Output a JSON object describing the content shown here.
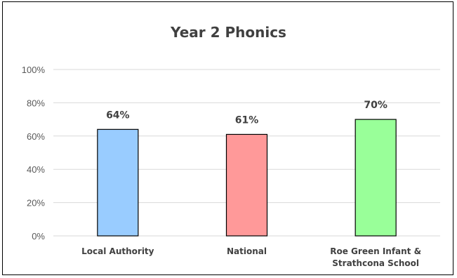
{
  "chart_data": {
    "type": "bar",
    "title": "Year 2 Phonics",
    "categories": [
      [
        "Local Authority"
      ],
      [
        "National"
      ],
      [
        "Roe Green Infant &",
        "Strathcona School"
      ]
    ],
    "values": [
      64,
      61,
      70
    ],
    "data_labels": [
      "64%",
      "61%",
      "70%"
    ],
    "colors": [
      "#99ccff",
      "#ff9999",
      "#99ff99"
    ],
    "ylim": [
      0,
      100
    ],
    "yticks": [
      {
        "value": 0,
        "label": "0%"
      },
      {
        "value": 20,
        "label": "20%"
      },
      {
        "value": 40,
        "label": "40%"
      },
      {
        "value": 60,
        "label": "60%"
      },
      {
        "value": 80,
        "label": "80%"
      },
      {
        "value": 100,
        "label": "100%"
      }
    ],
    "grid": true,
    "legend": "none"
  }
}
